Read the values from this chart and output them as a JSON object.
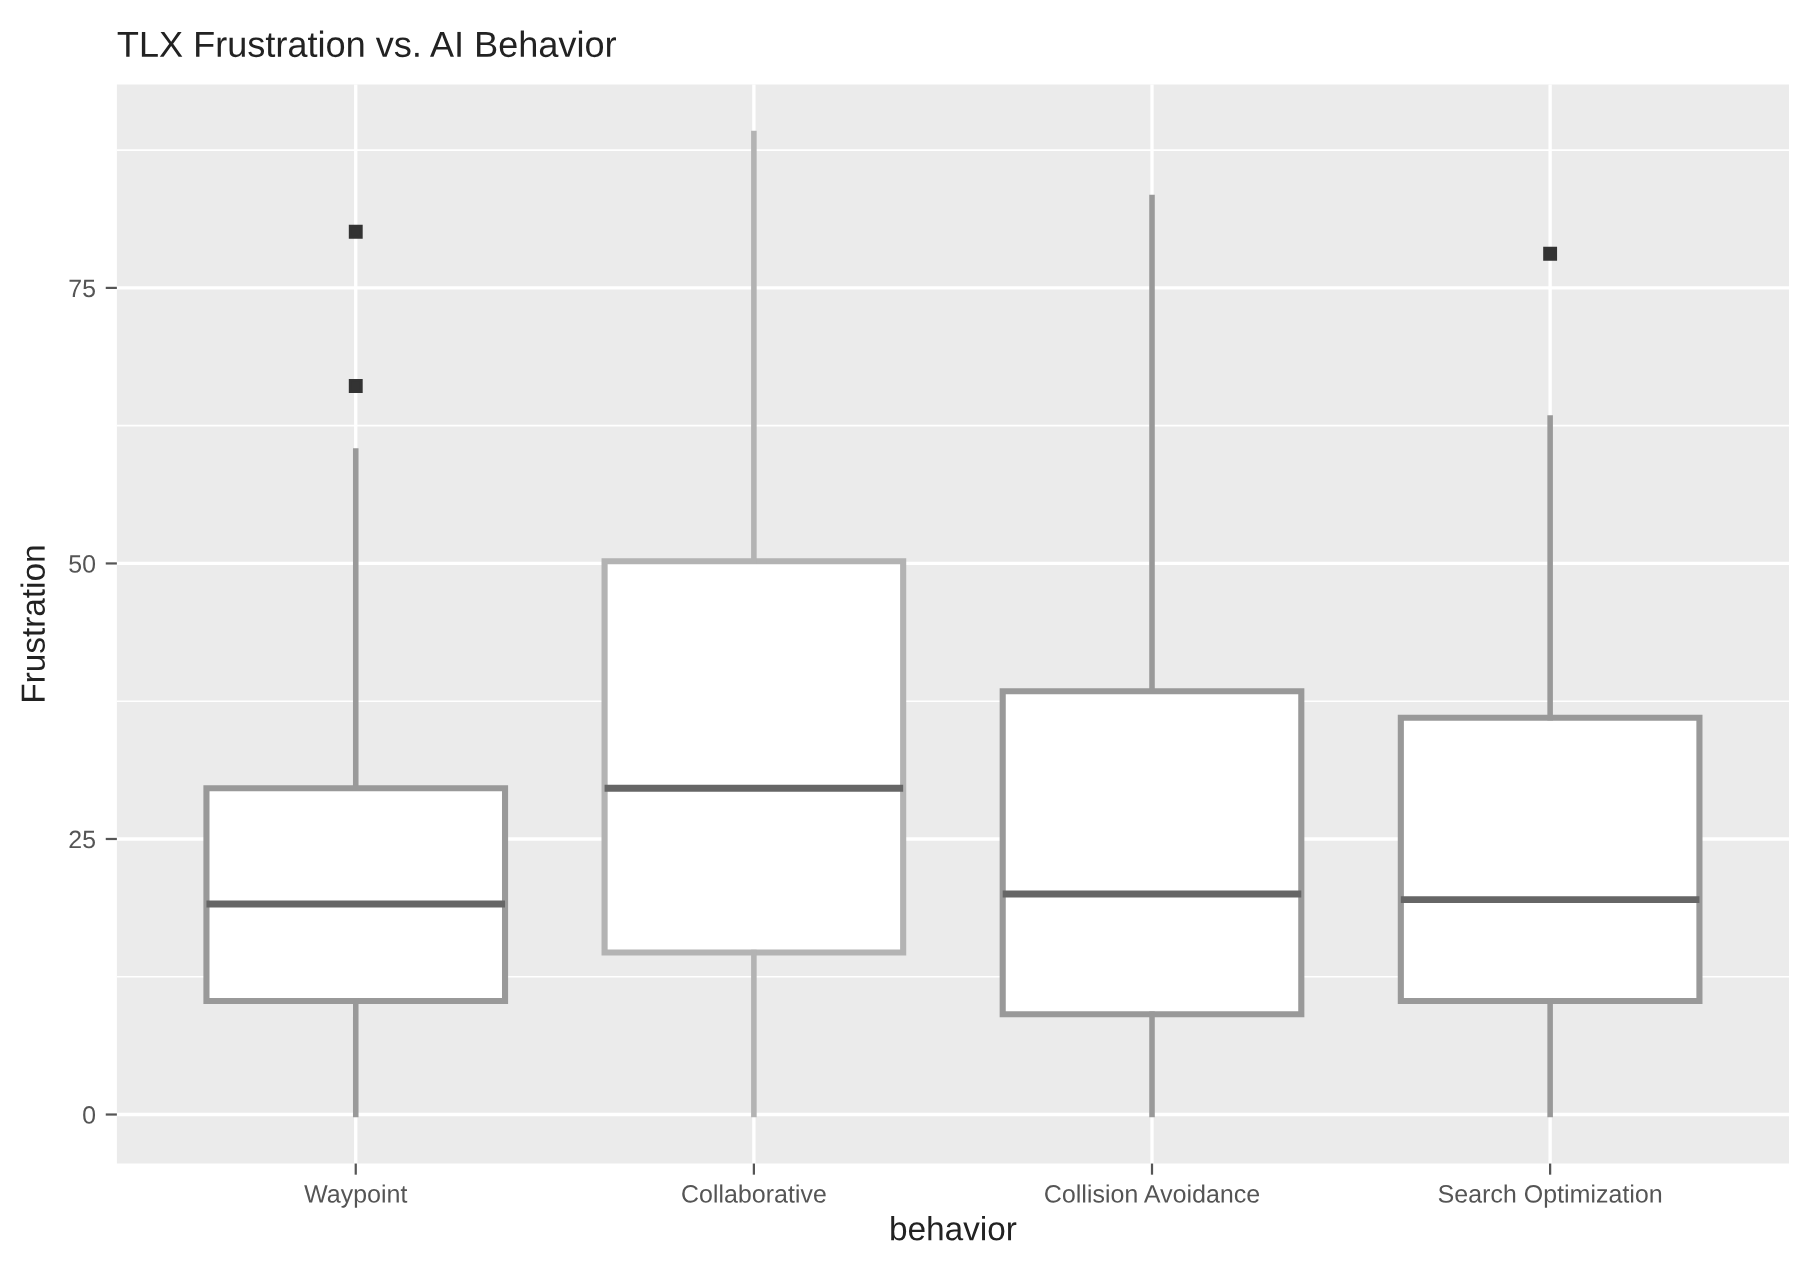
{
  "chart_data": {
    "type": "box",
    "title": "TLX Frustration vs. AI Behavior",
    "xlabel": "behavior",
    "ylabel": "Frustration",
    "categories": [
      "Waypoint",
      "Collaborative",
      "Collision Avoidance",
      "Search Optimization"
    ],
    "boxes": [
      {
        "low": 0,
        "q1": 10.3,
        "median": 19.1,
        "q3": 29.6,
        "high": 60.2,
        "outliers": [
          66.1,
          80.1
        ]
      },
      {
        "low": 0,
        "q1": 14.7,
        "median": 29.6,
        "q3": 50.2,
        "high": 89
      },
      {
        "low": 0,
        "q1": 9.1,
        "median": 20.0,
        "q3": 38.4,
        "high": 83.2
      },
      {
        "low": 0,
        "q1": 10.3,
        "median": 19.5,
        "q3": 36.0,
        "high": 63.2,
        "outliers": [
          78.1
        ]
      }
    ],
    "colors": [
      "#999999",
      "#b3b3b3",
      "#999999",
      "#999999"
    ],
    "ylim": [
      -4.45,
      93.45
    ],
    "yticks": [
      0,
      {
        "value": 12.5,
        "label": null
      },
      25,
      {
        "value": 37.5,
        "label": null
      },
      50,
      {
        "value": 62.5,
        "label": null
      },
      75,
      {
        "value": 87.5,
        "label": null
      }
    ],
    "grid": true,
    "legend": false
  }
}
